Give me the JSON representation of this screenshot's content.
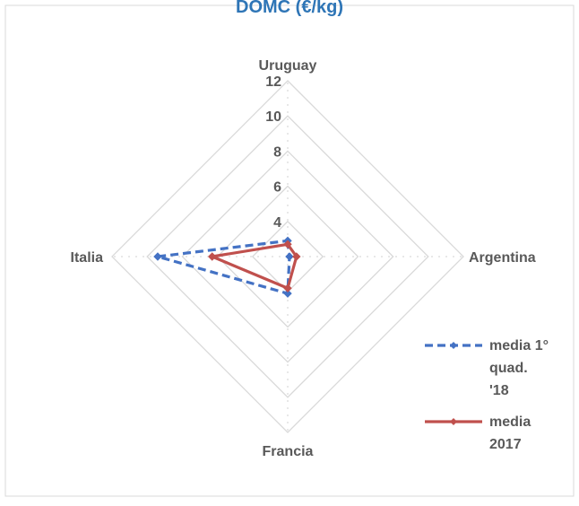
{
  "chart_data": {
    "type": "radar",
    "title": "DOMC (€/kg)",
    "categories": [
      "Uruguay",
      "Argentina",
      "Francia",
      "Italia"
    ],
    "r_ticks": [
      "4",
      "6",
      "8",
      "10",
      "12"
    ],
    "rlim": [
      2,
      12
    ],
    "grid": true,
    "legend_position": "right-bottom",
    "series": [
      {
        "name": "media 1° quad. '18",
        "values": [
          2.9,
          2.1,
          4.1,
          9.4
        ],
        "color": "#4472c4",
        "style": "dashed"
      },
      {
        "name": "media 2017",
        "values": [
          2.7,
          2.5,
          3.8,
          6.3
        ],
        "color": "#c0504d",
        "style": "solid"
      }
    ],
    "legend_lines": [
      [
        "media 1°",
        "quad.",
        "'18"
      ],
      [
        "media",
        "2017"
      ]
    ]
  }
}
